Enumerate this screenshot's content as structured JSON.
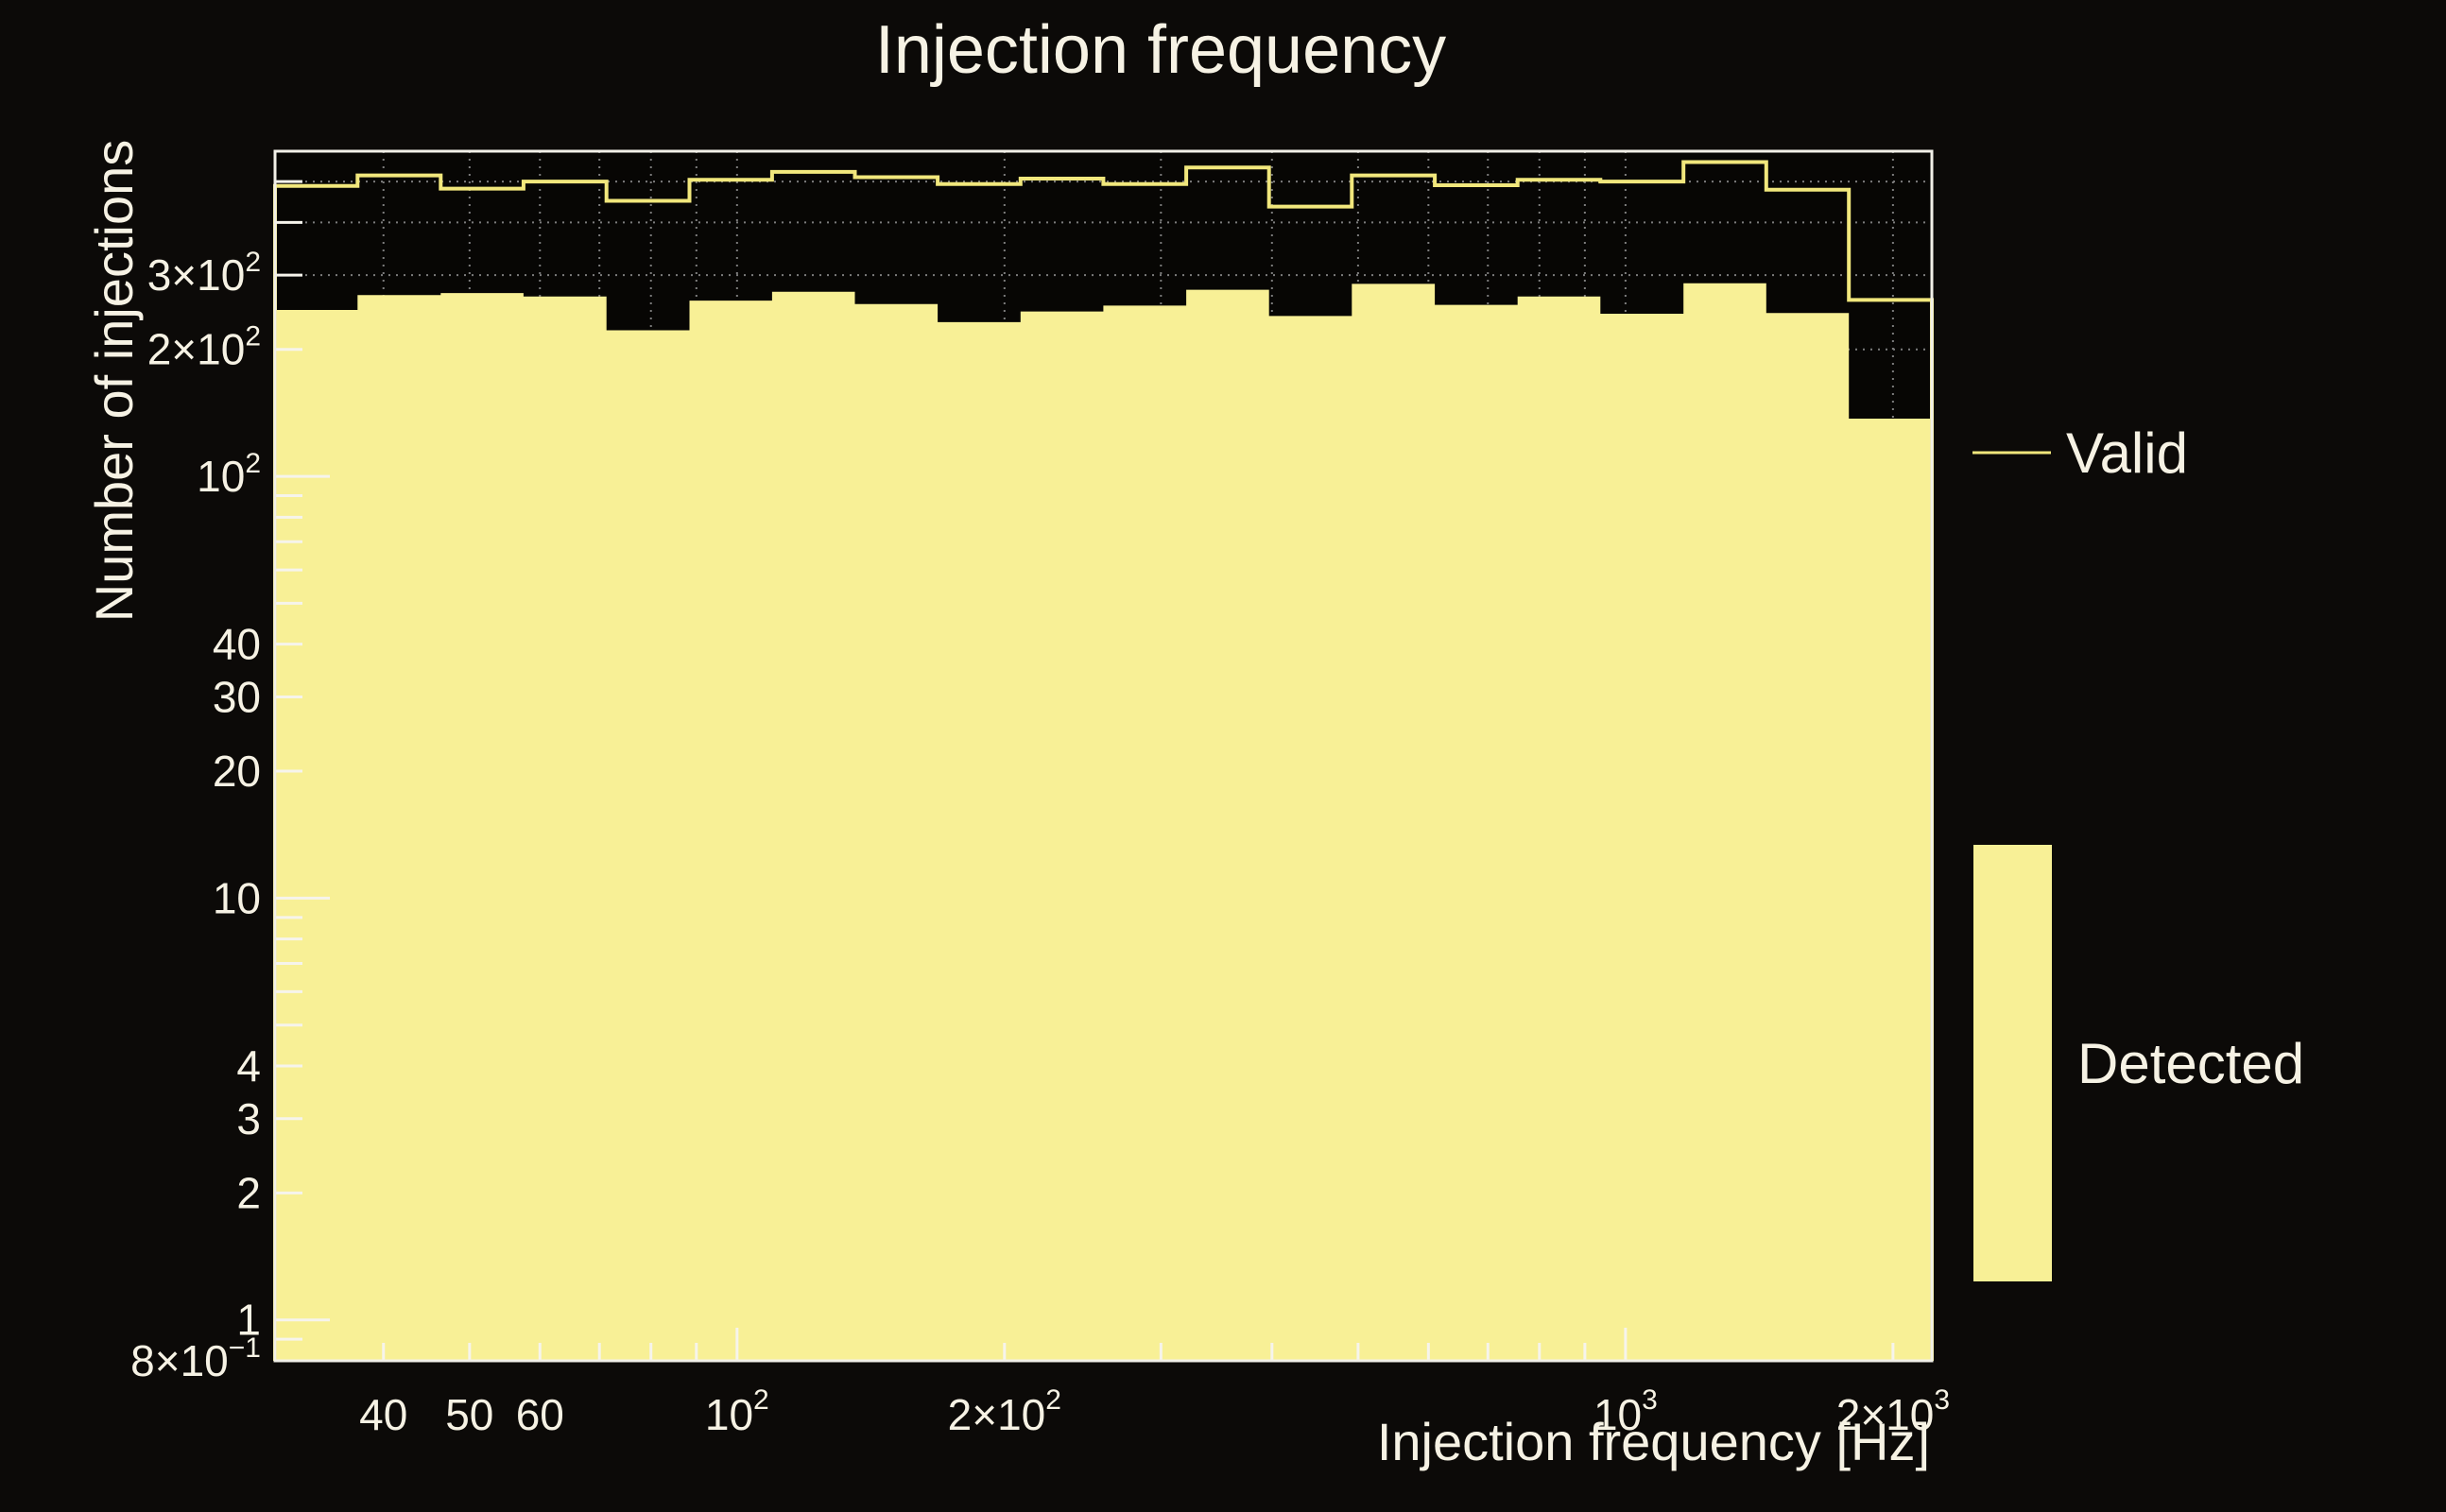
{
  "page": {
    "background": "#0c0a08",
    "plot_background": "#070604"
  },
  "colors": {
    "text": "#f6f2e4",
    "frame": "#f2f0e8",
    "tick": "#f6f4ec",
    "grid": "#7c7c7c",
    "valid_line": "#f1e77c",
    "detected_fill": "#f8f096"
  },
  "legend": {
    "items": [
      {
        "label": "Valid",
        "swatch": "line"
      },
      {
        "label": "Detected",
        "swatch": "filled-box"
      }
    ]
  },
  "chart_data": {
    "type": "histogram",
    "title": "Injection frequency",
    "xlabel": "Injection frequency [Hz]",
    "ylabel": "Number of injections",
    "x_scale": "log",
    "y_scale": "log",
    "xlim": [
      30.2,
      2212
    ],
    "ylim": [
      0.8,
      590
    ],
    "grid": "dotted gray lines at every log subdivision on both axes, drawn beneath the filled histogram",
    "legend_position": "right margin",
    "bin_edges_hz": [
      30.2,
      37.4,
      46.4,
      57.5,
      71.3,
      88.4,
      109.5,
      135.7,
      168.2,
      208.5,
      258.4,
      320.3,
      397,
      492,
      610,
      756,
      937,
      1162,
      1440,
      1784,
      2212
    ],
    "series": [
      {
        "name": "Valid",
        "style": "step-line",
        "color": "#f1e77c",
        "values": [
          488,
          517,
          481,
          500,
          450,
          505,
          527,
          512,
          493,
          508,
          493,
          540,
          436,
          517,
          490,
          505,
          500,
          556,
          478,
          262
        ]
      },
      {
        "name": "Detected",
        "style": "filled",
        "color": "#f8f096",
        "values": [
          248,
          269,
          272,
          267,
          222,
          261,
          274,
          256,
          232,
          246,
          254,
          277,
          240,
          286,
          255,
          267,
          243,
          287,
          244,
          137
        ]
      }
    ],
    "x_ticks": [
      {
        "v": 40,
        "base": "40",
        "sup": ""
      },
      {
        "v": 50,
        "base": "50",
        "sup": ""
      },
      {
        "v": 60,
        "base": "60",
        "sup": ""
      },
      {
        "v": 100,
        "base": "10",
        "sup": "2"
      },
      {
        "v": 200,
        "base": "2×10",
        "sup": "2"
      },
      {
        "v": 1000,
        "base": "10",
        "sup": "3"
      },
      {
        "v": 2000,
        "base": "2×10",
        "sup": "3"
      }
    ],
    "y_ticks": [
      {
        "v": 300,
        "base": "3×10",
        "sup": "2"
      },
      {
        "v": 200,
        "base": "2×10",
        "sup": "2"
      },
      {
        "v": 100,
        "base": "10",
        "sup": "2"
      },
      {
        "v": 40,
        "base": "40",
        "sup": ""
      },
      {
        "v": 30,
        "base": "30",
        "sup": ""
      },
      {
        "v": 20,
        "base": "20",
        "sup": ""
      },
      {
        "v": 10,
        "base": "10",
        "sup": ""
      },
      {
        "v": 4,
        "base": "4",
        "sup": ""
      },
      {
        "v": 3,
        "base": "3",
        "sup": ""
      },
      {
        "v": 2,
        "base": "2",
        "sup": ""
      },
      {
        "v": 1,
        "base": "1",
        "sup": ""
      },
      {
        "v": 0.8,
        "base": "8×10",
        "sup": "−1"
      }
    ]
  }
}
